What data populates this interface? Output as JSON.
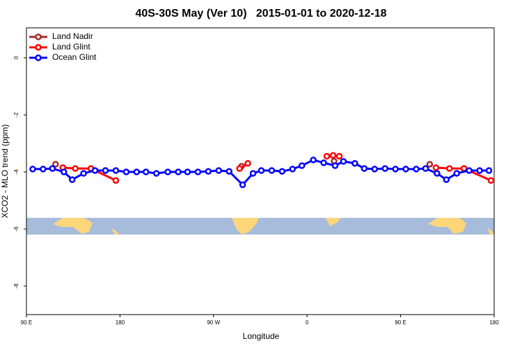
{
  "chart_data": {
    "type": "line",
    "title": "40S-30S May (Ver 10)   2015-01-01 to 2020-12-18",
    "x_label": "Longitude",
    "y_label": "XCO2 - MLO trend (ppm)",
    "xlim": [
      90,
      540
    ],
    "xticks": [
      {
        "value": 90,
        "label": "90 E"
      },
      {
        "value": 180,
        "label": "180"
      },
      {
        "value": 270,
        "label": "90 W"
      },
      {
        "value": 360,
        "label": "0"
      },
      {
        "value": 450,
        "label": "90 E"
      },
      {
        "value": 540,
        "label": "180"
      }
    ],
    "ylim": [
      -9,
      1.05
    ],
    "yticks": [
      0,
      -2,
      -4,
      -6,
      -8
    ],
    "legend": "top-left",
    "series": [
      {
        "name": "Land Nadir",
        "color": "#a52a2a",
        "x": [
          118,
          null,
          297,
          null,
          386,
          null,
          478,
          null,
          511
        ],
        "values": [
          -3.73,
          null,
          -3.8,
          null,
          -3.62,
          null,
          -3.73,
          null,
          -3.88
        ]
      },
      {
        "name": "Land Glint",
        "color": "#ff0000",
        "x": [
          125,
          137,
          152,
          176,
          null,
          295,
          303,
          null,
          379,
          385,
          391,
          null,
          484,
          497,
          511,
          537
        ],
        "values": [
          -3.85,
          -3.88,
          -3.88,
          -4.3,
          null,
          -3.88,
          -3.7,
          null,
          -3.45,
          -3.42,
          -3.45,
          null,
          -3.85,
          -3.88,
          -3.88,
          -4.3
        ]
      },
      {
        "name": "Ocean Glint",
        "color": "#0000ff",
        "x": [
          96,
          106,
          115,
          126,
          134,
          145,
          156,
          166,
          176,
          186,
          196,
          205,
          215,
          226,
          236,
          245,
          255,
          265,
          275,
          285,
          298,
          308,
          316,
          326,
          336,
          346,
          355,
          366,
          376,
          387,
          395,
          406,
          415,
          425,
          435,
          445,
          455,
          465,
          474,
          485,
          494,
          504,
          516,
          526,
          535
        ],
        "values": [
          -3.9,
          -3.9,
          -3.88,
          -4.0,
          -4.27,
          -4.05,
          -3.95,
          -3.95,
          -3.95,
          -4.0,
          -4.0,
          -4.0,
          -4.05,
          -4.0,
          -4.0,
          -4.0,
          -4.0,
          -3.98,
          -3.95,
          -3.98,
          -4.45,
          -4.05,
          -3.95,
          -3.95,
          -3.98,
          -3.9,
          -3.78,
          -3.58,
          -3.68,
          -3.78,
          -3.63,
          -3.7,
          -3.88,
          -3.9,
          -3.88,
          -3.9,
          -3.9,
          -3.9,
          -3.88,
          -4.05,
          -4.27,
          -4.05,
          -3.95,
          -3.95,
          -3.95
        ]
      }
    ]
  }
}
